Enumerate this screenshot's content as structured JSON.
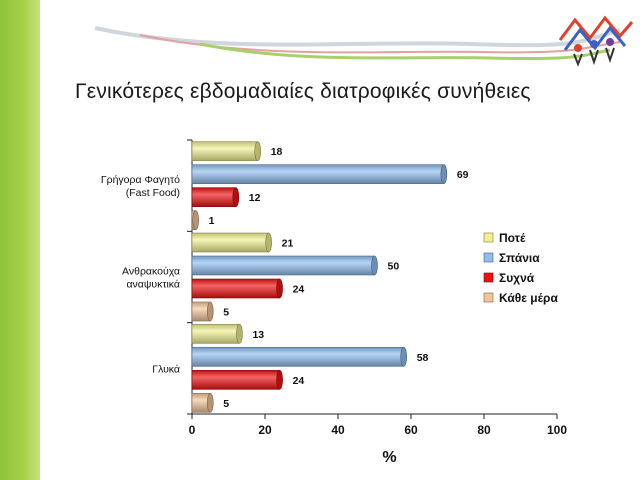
{
  "slide": {
    "title": "Γενικότερες εβδομαδιαίες διατροφικές συνήθειες"
  },
  "chart_data": {
    "type": "bar",
    "orientation": "horizontal",
    "categories": [
      [
        "Γρήγορα Φαγητό",
        "(Fast Food)"
      ],
      [
        "Ανθρακούχα",
        "αναψυκτικά"
      ],
      [
        "Γλυκά"
      ]
    ],
    "series": [
      {
        "name": "Ποτέ",
        "values": [
          18,
          21,
          13
        ],
        "color": "#f0f090"
      },
      {
        "name": "Σπάνια",
        "values": [
          69,
          50,
          58
        ],
        "color": "#8fbdf0"
      },
      {
        "name": "Συχνά",
        "values": [
          12,
          24,
          24
        ],
        "color": "#ee1111"
      },
      {
        "name": "Κάθε μέρα",
        "values": [
          1,
          5,
          5
        ],
        "color": "#f2c49a"
      }
    ],
    "xlabel": "%",
    "xlim": [
      0,
      100
    ],
    "xticks": [
      0,
      20,
      40,
      60,
      80,
      100
    ],
    "legend": "right",
    "grid": false,
    "bar_style": "3d-cylinder"
  }
}
